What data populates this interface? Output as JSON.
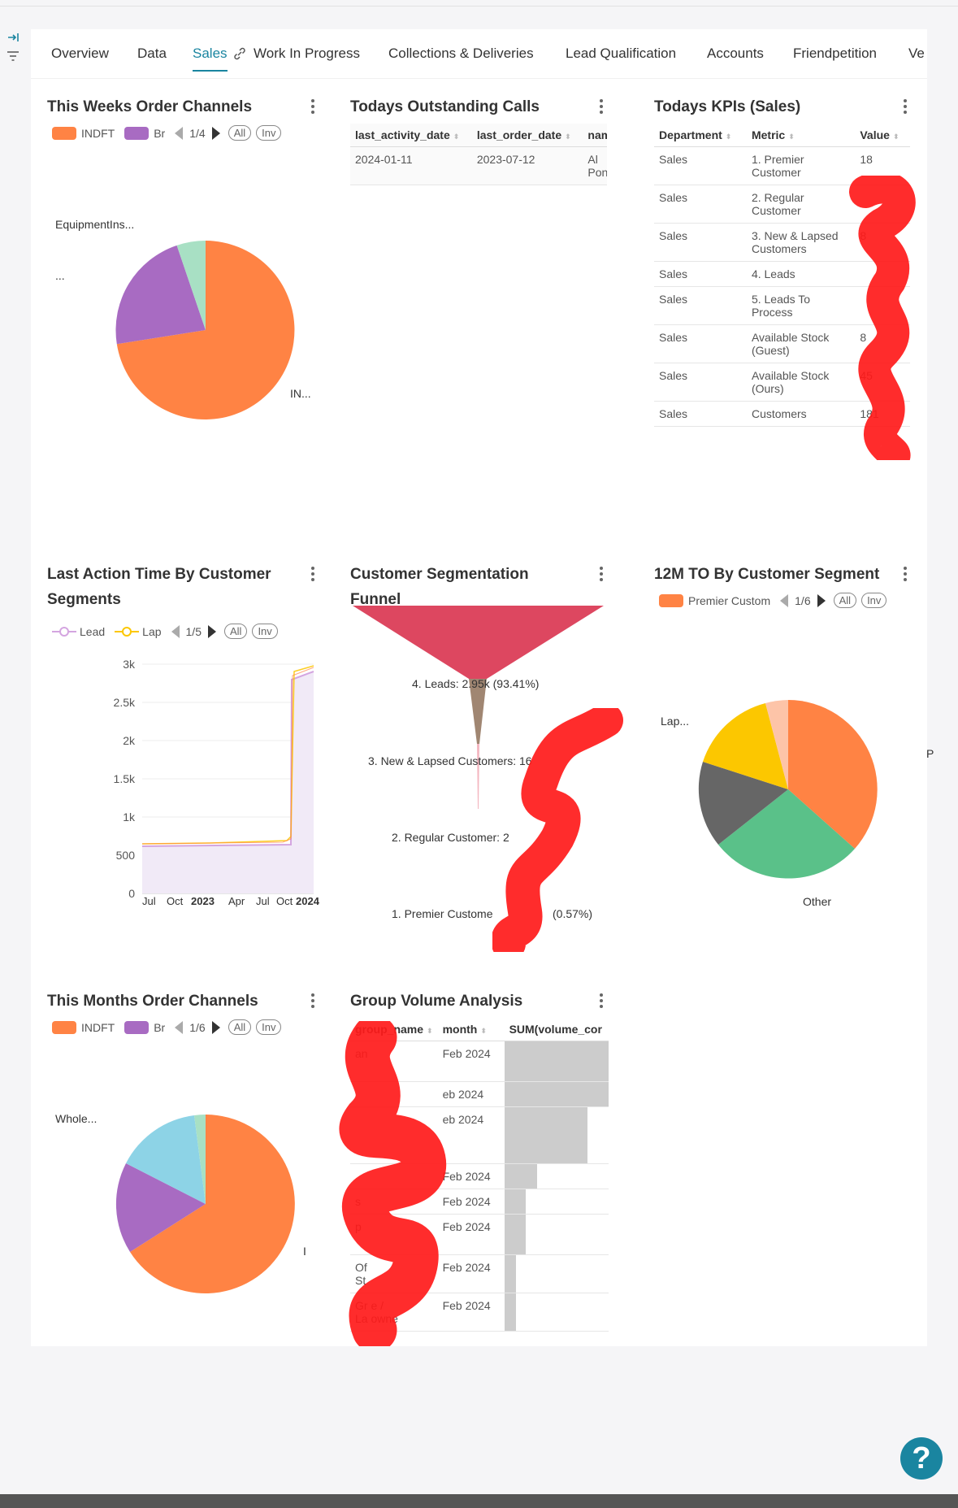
{
  "tabs": [
    {
      "label": "Overview"
    },
    {
      "label": "Data"
    },
    {
      "label": "Sales",
      "active": true
    },
    {
      "label": "Work In Progress"
    },
    {
      "label": "Collections & Deliveries"
    },
    {
      "label": "Lead Qualification"
    },
    {
      "label": "Accounts"
    },
    {
      "label": "Friendpetition"
    },
    {
      "label": "Ve"
    }
  ],
  "colors": {
    "accent": "#1a85a0",
    "orange": "#ff8344",
    "purple": "#a86bc2",
    "mint": "#a8e0c4",
    "lightblue": "#8dd3e6",
    "red_funnel": "#dd4760",
    "brown_funnel": "#a08672",
    "green": "#5ac189",
    "yellow": "#fcc700",
    "grey": "#666666",
    "peach": "#fdc4a8",
    "redact": "#ff1a1a"
  },
  "weekly_channels": {
    "title": "This Weeks Order Channels",
    "legend": [
      {
        "label": "INDFT",
        "color": "#ff8344"
      },
      {
        "label": "Br",
        "color": "#a86bc2"
      }
    ],
    "pager": "1/4",
    "all": "All",
    "inv": "Inv",
    "labels": {
      "a": "EquipmentIns...",
      "b": "...",
      "c": "IN..."
    }
  },
  "outstanding_calls": {
    "title": "Todays Outstanding Calls",
    "columns": [
      "last_activity_date",
      "last_order_date",
      "nam"
    ],
    "rows": [
      {
        "c1": "2024-01-11",
        "c2": "2023-07-12",
        "c3a": "Al",
        "c3b": "Pont"
      }
    ]
  },
  "kpis": {
    "title": "Todays KPIs (Sales)",
    "columns": [
      "Department",
      "Metric",
      "Value"
    ],
    "rows": [
      {
        "dept": "Sales",
        "m1": "1. Premier",
        "m2": "Customer",
        "val": "18"
      },
      {
        "dept": "Sales",
        "m1": "2. Regular",
        "m2": "Customer",
        "val": ""
      },
      {
        "dept": "Sales",
        "m1": "3. New & Lapsed",
        "m2": "Customers",
        "val": "8"
      },
      {
        "dept": "Sales",
        "m1": "4. Leads",
        "m2": "",
        "val": ""
      },
      {
        "dept": "Sales",
        "m1": "5. Leads To",
        "m2": "Process",
        "val": ""
      },
      {
        "dept": "Sales",
        "m1": "Available Stock",
        "m2": "(Guest)",
        "val": "8"
      },
      {
        "dept": "Sales",
        "m1": "Available Stock",
        "m2": "(Ours)",
        "val": "45"
      },
      {
        "dept": "Sales",
        "m1": "Customers",
        "m2": "",
        "val": "181"
      }
    ]
  },
  "last_action": {
    "title1": "Last Action Time By Customer",
    "title2": "Segments",
    "legend": [
      {
        "label": "Lead",
        "color": "#d4a5e0"
      },
      {
        "label": "Lap",
        "color": "#fcc700"
      }
    ],
    "pager": "1/5",
    "all": "All",
    "inv": "Inv",
    "y_ticks": [
      "3k",
      "2.5k",
      "2k",
      "1.5k",
      "1k",
      "500",
      "0"
    ],
    "x_ticks": [
      "Jul",
      "Oct",
      "2023",
      "Apr",
      "Jul",
      "Oct",
      "2024"
    ]
  },
  "funnel": {
    "title1": "Customer Segmentation",
    "title2": "Funnel",
    "labels": [
      "4. Leads: 2.95k (93.41%)",
      "3. New & Lapsed Customers: 16",
      "2. Regular Customer: 2",
      "1. Premier Custome",
      "(0.57%)"
    ]
  },
  "segment_to": {
    "title": "12M TO By Customer Segment",
    "legend": [
      {
        "label": "Premier Custom",
        "color": "#ff8344"
      }
    ],
    "pager": "1/6",
    "all": "All",
    "inv": "Inv",
    "labels": {
      "lap": "Lap...",
      "p": "P",
      "other": "Other"
    }
  },
  "monthly_channels": {
    "title": "This Months Order Channels",
    "legend": [
      {
        "label": "INDFT",
        "color": "#ff8344"
      },
      {
        "label": "Br",
        "color": "#a86bc2"
      }
    ],
    "pager": "1/6",
    "all": "All",
    "inv": "Inv",
    "labels": {
      "a": "Whole...",
      "b": "I"
    }
  },
  "group_volume": {
    "title": "Group Volume Analysis",
    "columns": [
      "group_name",
      "month",
      "SUM(volume_cor"
    ],
    "rows": [
      {
        "g1": "an",
        "g2": "",
        "month": "Feb 2024",
        "bar": 1.0
      },
      {
        "g1": "",
        "g2": "",
        "month": "eb 2024",
        "bar": 1.0
      },
      {
        "g1": "",
        "g2": "",
        "month": "eb 2024",
        "bar": 0.73
      },
      {
        "g1": "",
        "g2": "",
        "month": "Feb 2024",
        "bar": 0.29
      },
      {
        "g1": "s",
        "g2": "",
        "month": "Feb 2024",
        "bar": 0.19
      },
      {
        "g1": "p",
        "g2": "",
        "month": "Feb 2024",
        "bar": 0.19
      },
      {
        "g1": "Of",
        "g2": "St",
        "month": "Feb 2024",
        "bar": 0.1
      },
      {
        "g1": "Gr   e /",
        "g2": "La   owne",
        "month": "Feb 2024",
        "bar": 0.1
      }
    ]
  },
  "help": "?"
}
